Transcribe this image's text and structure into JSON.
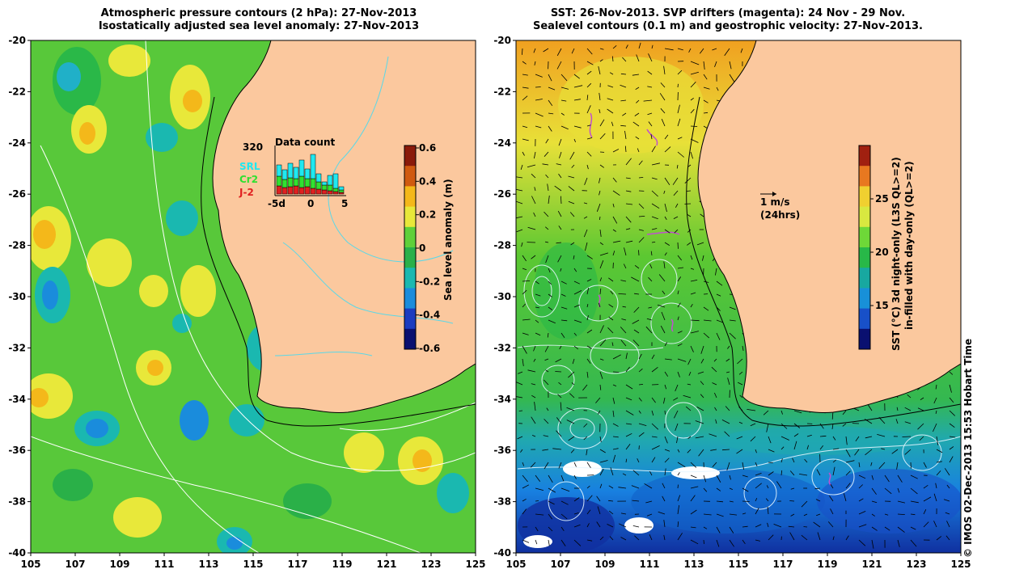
{
  "left_panel": {
    "title_line1": "Atmospheric pressure contours (2 hPa): 27-Nov-2013",
    "title_line2": "Isostatically adjusted sea level anomaly: 27-Nov-2013",
    "colorbar": {
      "label": "Sea level anomaly (m)",
      "ticks": [
        "0.6",
        "0.4",
        "0.2",
        "0",
        "-0.2",
        "-0.4",
        "-0.6"
      ],
      "colors": [
        "#8a1a0a",
        "#d05a10",
        "#f4b81a",
        "#e8e83a",
        "#5fd03a",
        "#2ab04a",
        "#1ab8b0",
        "#1a8cdc",
        "#1a3cc0",
        "#0a1070"
      ]
    },
    "inset": {
      "max_label": "320",
      "title": "Data count",
      "legend": [
        {
          "label": "SRL",
          "color": "#20e8f0"
        },
        {
          "label": "Cr2",
          "color": "#30e030"
        },
        {
          "label": "J-2",
          "color": "#e02020"
        }
      ],
      "x_ticks": [
        "-5d",
        "0",
        "5"
      ]
    }
  },
  "right_panel": {
    "title_line1": "SST: 26-Nov-2013. SVP drifters (magenta): 24 Nov - 29 Nov.",
    "title_line2": "Sealevel contours (0.1 m) and geostrophic velocity: 27-Nov-2013.",
    "colorbar": {
      "label_line1": "SST (°C)  3d night-only (L3S QL>=2)",
      "label_line2": "in-filled with day-only (QL>=2)",
      "ticks": [
        "25",
        "20",
        "15"
      ],
      "colors": [
        "#a02010",
        "#e87820",
        "#f0d030",
        "#d8e840",
        "#6ed838",
        "#28b848",
        "#18a8a0",
        "#1890d8",
        "#1850c8",
        "#0a1070"
      ]
    },
    "velocity_legend": {
      "speed": "1 m/s",
      "period": "(24hrs)"
    }
  },
  "axes": {
    "y_ticks": [
      "-20",
      "-22",
      "-24",
      "-26",
      "-28",
      "-30",
      "-32",
      "-34",
      "-36",
      "-38",
      "-40"
    ],
    "x_ticks": [
      "105",
      "107",
      "109",
      "111",
      "113",
      "115",
      "117",
      "119",
      "121",
      "123",
      "125"
    ]
  },
  "colors": {
    "land": "#fbc89e",
    "ocean_base": "#58c83a",
    "coast": "#000000"
  },
  "footer": "© IMOS 02-Dec-2013 15:53 Hobart Time"
}
